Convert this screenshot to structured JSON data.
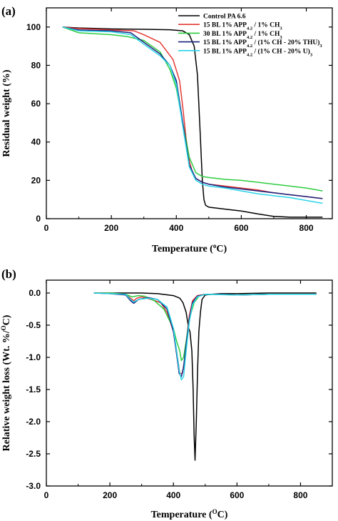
{
  "chart_data": [
    {
      "type": "line",
      "panel": "(a)",
      "xlabel": "Temperature (",
      "xlabel_sup": "o",
      "xlabel_tail": "C)",
      "ylabel": "Residual weight (%)",
      "xlim": [
        0,
        880
      ],
      "ylim": [
        0,
        110
      ],
      "xticks": [
        0,
        200,
        400,
        600,
        800
      ],
      "yticks": [
        0,
        20,
        40,
        60,
        80,
        100
      ],
      "grid": false,
      "legend_position": "top-right",
      "series": [
        {
          "color": "#000000",
          "legend_parts": [
            {
              "t": "Control PA 6.6"
            }
          ],
          "x": [
            50,
            100,
            200,
            300,
            380,
            420,
            440,
            455,
            465,
            472,
            480,
            485,
            490,
            500,
            550,
            600,
            650,
            700,
            750,
            800,
            850
          ],
          "y": [
            100,
            99.5,
            99,
            98.8,
            98.6,
            98,
            96,
            90,
            75,
            50,
            20,
            10,
            7,
            6,
            5,
            4,
            2.5,
            1.2,
            0.8,
            0.8,
            0.8
          ]
        },
        {
          "color": "#e53935",
          "legend_parts": [
            {
              "t": "15 BL 1% APP"
            },
            {
              "t": "4.2",
              "sub": true
            },
            {
              "t": " / 1% CH"
            },
            {
              "t": "3",
              "sub": true
            }
          ],
          "x": [
            50,
            100,
            200,
            270,
            300,
            350,
            390,
            410,
            420,
            430,
            440,
            450,
            460,
            480,
            500,
            550,
            600,
            650,
            700,
            750,
            800,
            850
          ],
          "y": [
            100,
            99.2,
            98.5,
            98,
            96,
            92,
            83,
            72,
            58,
            42,
            30,
            24,
            21,
            19,
            18,
            17,
            16,
            15,
            13.5,
            12.5,
            11.5,
            10.5
          ]
        },
        {
          "color": "#2ecc40",
          "legend_parts": [
            {
              "t": "30 BL 1% APP"
            },
            {
              "t": "4.2",
              "sub": true
            },
            {
              "t": " / 1% CH"
            },
            {
              "t": "3",
              "sub": true
            }
          ],
          "x": [
            50,
            100,
            200,
            250,
            300,
            350,
            380,
            400,
            420,
            440,
            460,
            480,
            500,
            550,
            600,
            650,
            700,
            750,
            800,
            850
          ],
          "y": [
            100,
            97,
            96,
            95,
            93,
            87,
            78,
            68,
            50,
            32,
            24,
            22,
            21.5,
            20.5,
            20,
            19,
            18,
            17,
            16,
            14.5
          ]
        },
        {
          "color": "#1a237e",
          "legend_parts": [
            {
              "t": "15 BL 1% APP"
            },
            {
              "t": "4.2",
              "sub": true
            },
            {
              "t": " / (1% CH - 20% THU)"
            },
            {
              "t": "3",
              "sub": true
            }
          ],
          "x": [
            50,
            100,
            200,
            260,
            300,
            350,
            380,
            400,
            420,
            440,
            460,
            480,
            500,
            550,
            600,
            650,
            700,
            750,
            800,
            850
          ],
          "y": [
            100,
            98.5,
            98,
            97,
            92,
            86,
            80,
            72,
            50,
            28,
            21,
            19,
            18,
            16.5,
            15.5,
            14.5,
            13.5,
            12.5,
            11.5,
            10.5
          ]
        },
        {
          "color": "#29d4e8",
          "legend_parts": [
            {
              "t": "15 BL 1% APP"
            },
            {
              "t": "4.2",
              "sub": true
            },
            {
              "t": " / (1% CH - 20% U)"
            },
            {
              "t": "3",
              "sub": true
            }
          ],
          "x": [
            50,
            100,
            200,
            260,
            300,
            350,
            380,
            400,
            420,
            440,
            460,
            480,
            500,
            550,
            600,
            650,
            700,
            750,
            800,
            850
          ],
          "y": [
            100,
            98,
            97.5,
            96,
            91,
            85,
            80,
            70,
            48,
            27,
            20,
            18,
            17,
            16,
            14.5,
            13,
            12,
            11,
            9.5,
            8
          ]
        }
      ]
    },
    {
      "type": "line",
      "panel": "(b)",
      "xlabel": "Temperature (",
      "xlabel_sup": "O",
      "xlabel_tail": "C)",
      "ylabel": "Relative weight loss (Wt. %/",
      "ylabel_sup": "O",
      "ylabel_tail": "C)",
      "xlim": [
        0,
        900
      ],
      "ylim": [
        -3.0,
        0.2
      ],
      "xticks": [
        0,
        200,
        400,
        600,
        800
      ],
      "yticks": [
        0.0,
        -0.5,
        -1.0,
        -1.5,
        -2.0,
        -2.5,
        -3.0
      ],
      "ytick_labels": [
        "0.0",
        "-0.5",
        "-1.0",
        "-1.5",
        "-2.0",
        "-2.5",
        "-3.0"
      ],
      "grid": false,
      "series": [
        {
          "color": "#000000",
          "x": [
            150,
            200,
            250,
            300,
            350,
            400,
            420,
            430,
            440,
            448,
            452,
            458,
            462,
            465,
            468,
            472,
            476,
            480,
            485,
            490,
            500,
            520,
            550,
            600,
            700,
            800,
            850
          ],
          "y": [
            0,
            0,
            0,
            0,
            -0.01,
            -0.04,
            -0.08,
            -0.15,
            -0.3,
            -0.55,
            -0.6,
            -0.9,
            -1.5,
            -2.2,
            -2.6,
            -2.0,
            -1.2,
            -0.6,
            -0.3,
            -0.1,
            -0.03,
            -0.02,
            -0.01,
            -0.01,
            0,
            0,
            0
          ]
        },
        {
          "color": "#e53935",
          "x": [
            150,
            200,
            250,
            265,
            275,
            285,
            300,
            330,
            360,
            380,
            400,
            410,
            420,
            428,
            435,
            442,
            450,
            460,
            475,
            500,
            550,
            600,
            700,
            800,
            850
          ],
          "y": [
            0,
            0,
            -0.02,
            -0.08,
            -0.12,
            -0.08,
            -0.06,
            -0.1,
            -0.15,
            -0.3,
            -0.6,
            -0.9,
            -1.25,
            -1.25,
            -1.05,
            -0.7,
            -0.35,
            -0.12,
            -0.04,
            -0.02,
            -0.02,
            -0.03,
            -0.02,
            -0.02,
            -0.02
          ]
        },
        {
          "color": "#2ecc40",
          "x": [
            150,
            200,
            250,
            270,
            290,
            310,
            340,
            370,
            390,
            400,
            410,
            420,
            425,
            432,
            440,
            450,
            465,
            480,
            500,
            600,
            700,
            800,
            850
          ],
          "y": [
            0,
            0,
            -0.02,
            -0.06,
            -0.04,
            -0.05,
            -0.12,
            -0.25,
            -0.45,
            -0.55,
            -0.75,
            -0.9,
            -1.05,
            -1.0,
            -0.75,
            -0.4,
            -0.15,
            -0.05,
            -0.02,
            -0.03,
            -0.02,
            -0.02,
            -0.02
          ]
        },
        {
          "color": "#1a237e",
          "x": [
            150,
            200,
            250,
            265,
            275,
            290,
            320,
            350,
            380,
            400,
            410,
            418,
            425,
            432,
            440,
            450,
            460,
            475,
            500,
            550,
            600,
            700,
            800,
            850
          ],
          "y": [
            0,
            -0.01,
            -0.03,
            -0.12,
            -0.16,
            -0.1,
            -0.07,
            -0.1,
            -0.25,
            -0.6,
            -0.95,
            -1.25,
            -1.3,
            -1.15,
            -0.8,
            -0.4,
            -0.15,
            -0.05,
            -0.02,
            -0.02,
            -0.03,
            -0.02,
            -0.02,
            -0.02
          ]
        },
        {
          "color": "#29d4e8",
          "x": [
            150,
            200,
            250,
            265,
            275,
            290,
            320,
            350,
            380,
            400,
            410,
            418,
            425,
            432,
            440,
            450,
            460,
            475,
            500,
            600,
            700,
            800,
            850
          ],
          "y": [
            0,
            -0.01,
            -0.02,
            -0.1,
            -0.14,
            -0.1,
            -0.08,
            -0.1,
            -0.22,
            -0.55,
            -0.9,
            -1.2,
            -1.35,
            -1.3,
            -0.9,
            -0.45,
            -0.18,
            -0.06,
            -0.02,
            -0.03,
            -0.02,
            -0.02,
            -0.02
          ]
        }
      ]
    }
  ]
}
